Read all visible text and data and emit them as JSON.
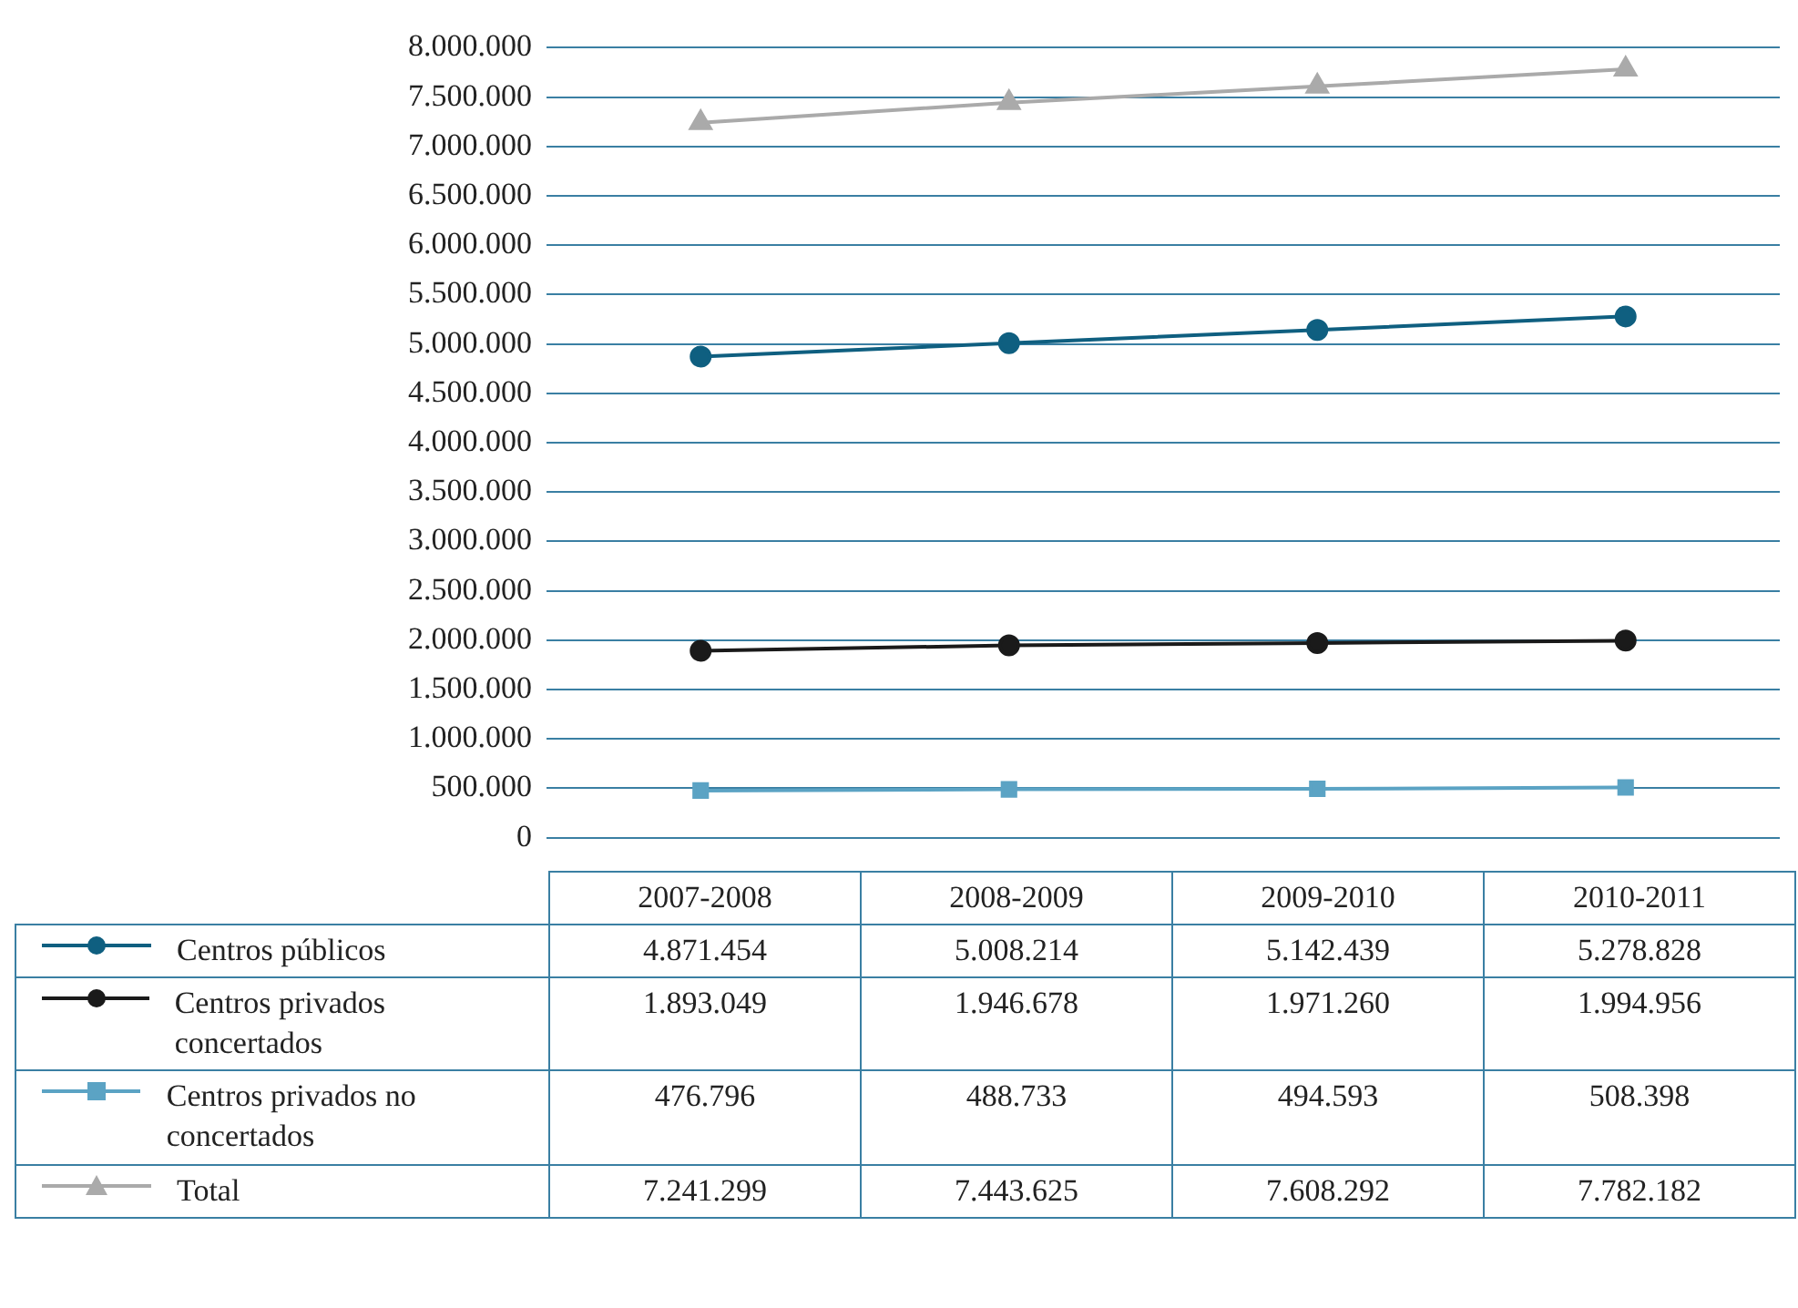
{
  "chart_data": {
    "type": "line",
    "categories": [
      "2007-2008",
      "2008-2009",
      "2009-2010",
      "2010-2011"
    ],
    "series": [
      {
        "name": "Centros públicos",
        "color": "#0f5f80",
        "marker": "circle",
        "values": [
          4871454,
          5008214,
          5142439,
          5278828
        ],
        "value_labels": [
          "4.871.454",
          "5.008.214",
          "5.142.439",
          "5.278.828"
        ]
      },
      {
        "name": "Centros privados concertados",
        "color": "#1a1a1a",
        "marker": "circle",
        "values": [
          1893049,
          1946678,
          1971260,
          1994956
        ],
        "value_labels": [
          "1.893.049",
          "1.946.678",
          "1.971.260",
          "1.994.956"
        ]
      },
      {
        "name": "Centros privados no concertados",
        "color": "#5ba3c4",
        "marker": "square",
        "values": [
          476796,
          488733,
          494593,
          508398
        ],
        "value_labels": [
          "476.796",
          "488.733",
          "494.593",
          "508.398"
        ]
      },
      {
        "name": "Total",
        "color": "#aaaaaa",
        "marker": "triangle",
        "values": [
          7241299,
          7443625,
          7608292,
          7782182
        ],
        "value_labels": [
          "7.241.299",
          "7.443.625",
          "7.608.292",
          "7.782.182"
        ]
      }
    ],
    "ylim": [
      0,
      8000000
    ],
    "yticks": [
      {
        "value": 0,
        "label": "0"
      },
      {
        "value": 500000,
        "label": "500.000"
      },
      {
        "value": 1000000,
        "label": "1.000.000"
      },
      {
        "value": 1500000,
        "label": "1.500.000"
      },
      {
        "value": 2000000,
        "label": "2.000.000"
      },
      {
        "value": 2500000,
        "label": "2.500.000"
      },
      {
        "value": 3000000,
        "label": "3.000.000"
      },
      {
        "value": 3500000,
        "label": "3.500.000"
      },
      {
        "value": 4000000,
        "label": "4.000.000"
      },
      {
        "value": 4500000,
        "label": "4.500.000"
      },
      {
        "value": 5000000,
        "label": "5.000.000"
      },
      {
        "value": 5500000,
        "label": "5.500.000"
      },
      {
        "value": 6000000,
        "label": "6.000.000"
      },
      {
        "value": 6500000,
        "label": "6.500.000"
      },
      {
        "value": 7000000,
        "label": "7.000.000"
      },
      {
        "value": 7500000,
        "label": "7.500.000"
      },
      {
        "value": 8000000,
        "label": "8.000.000"
      }
    ],
    "grid": "y",
    "legend": "bottom",
    "tick_labels": "y",
    "line_style": "solid"
  }
}
